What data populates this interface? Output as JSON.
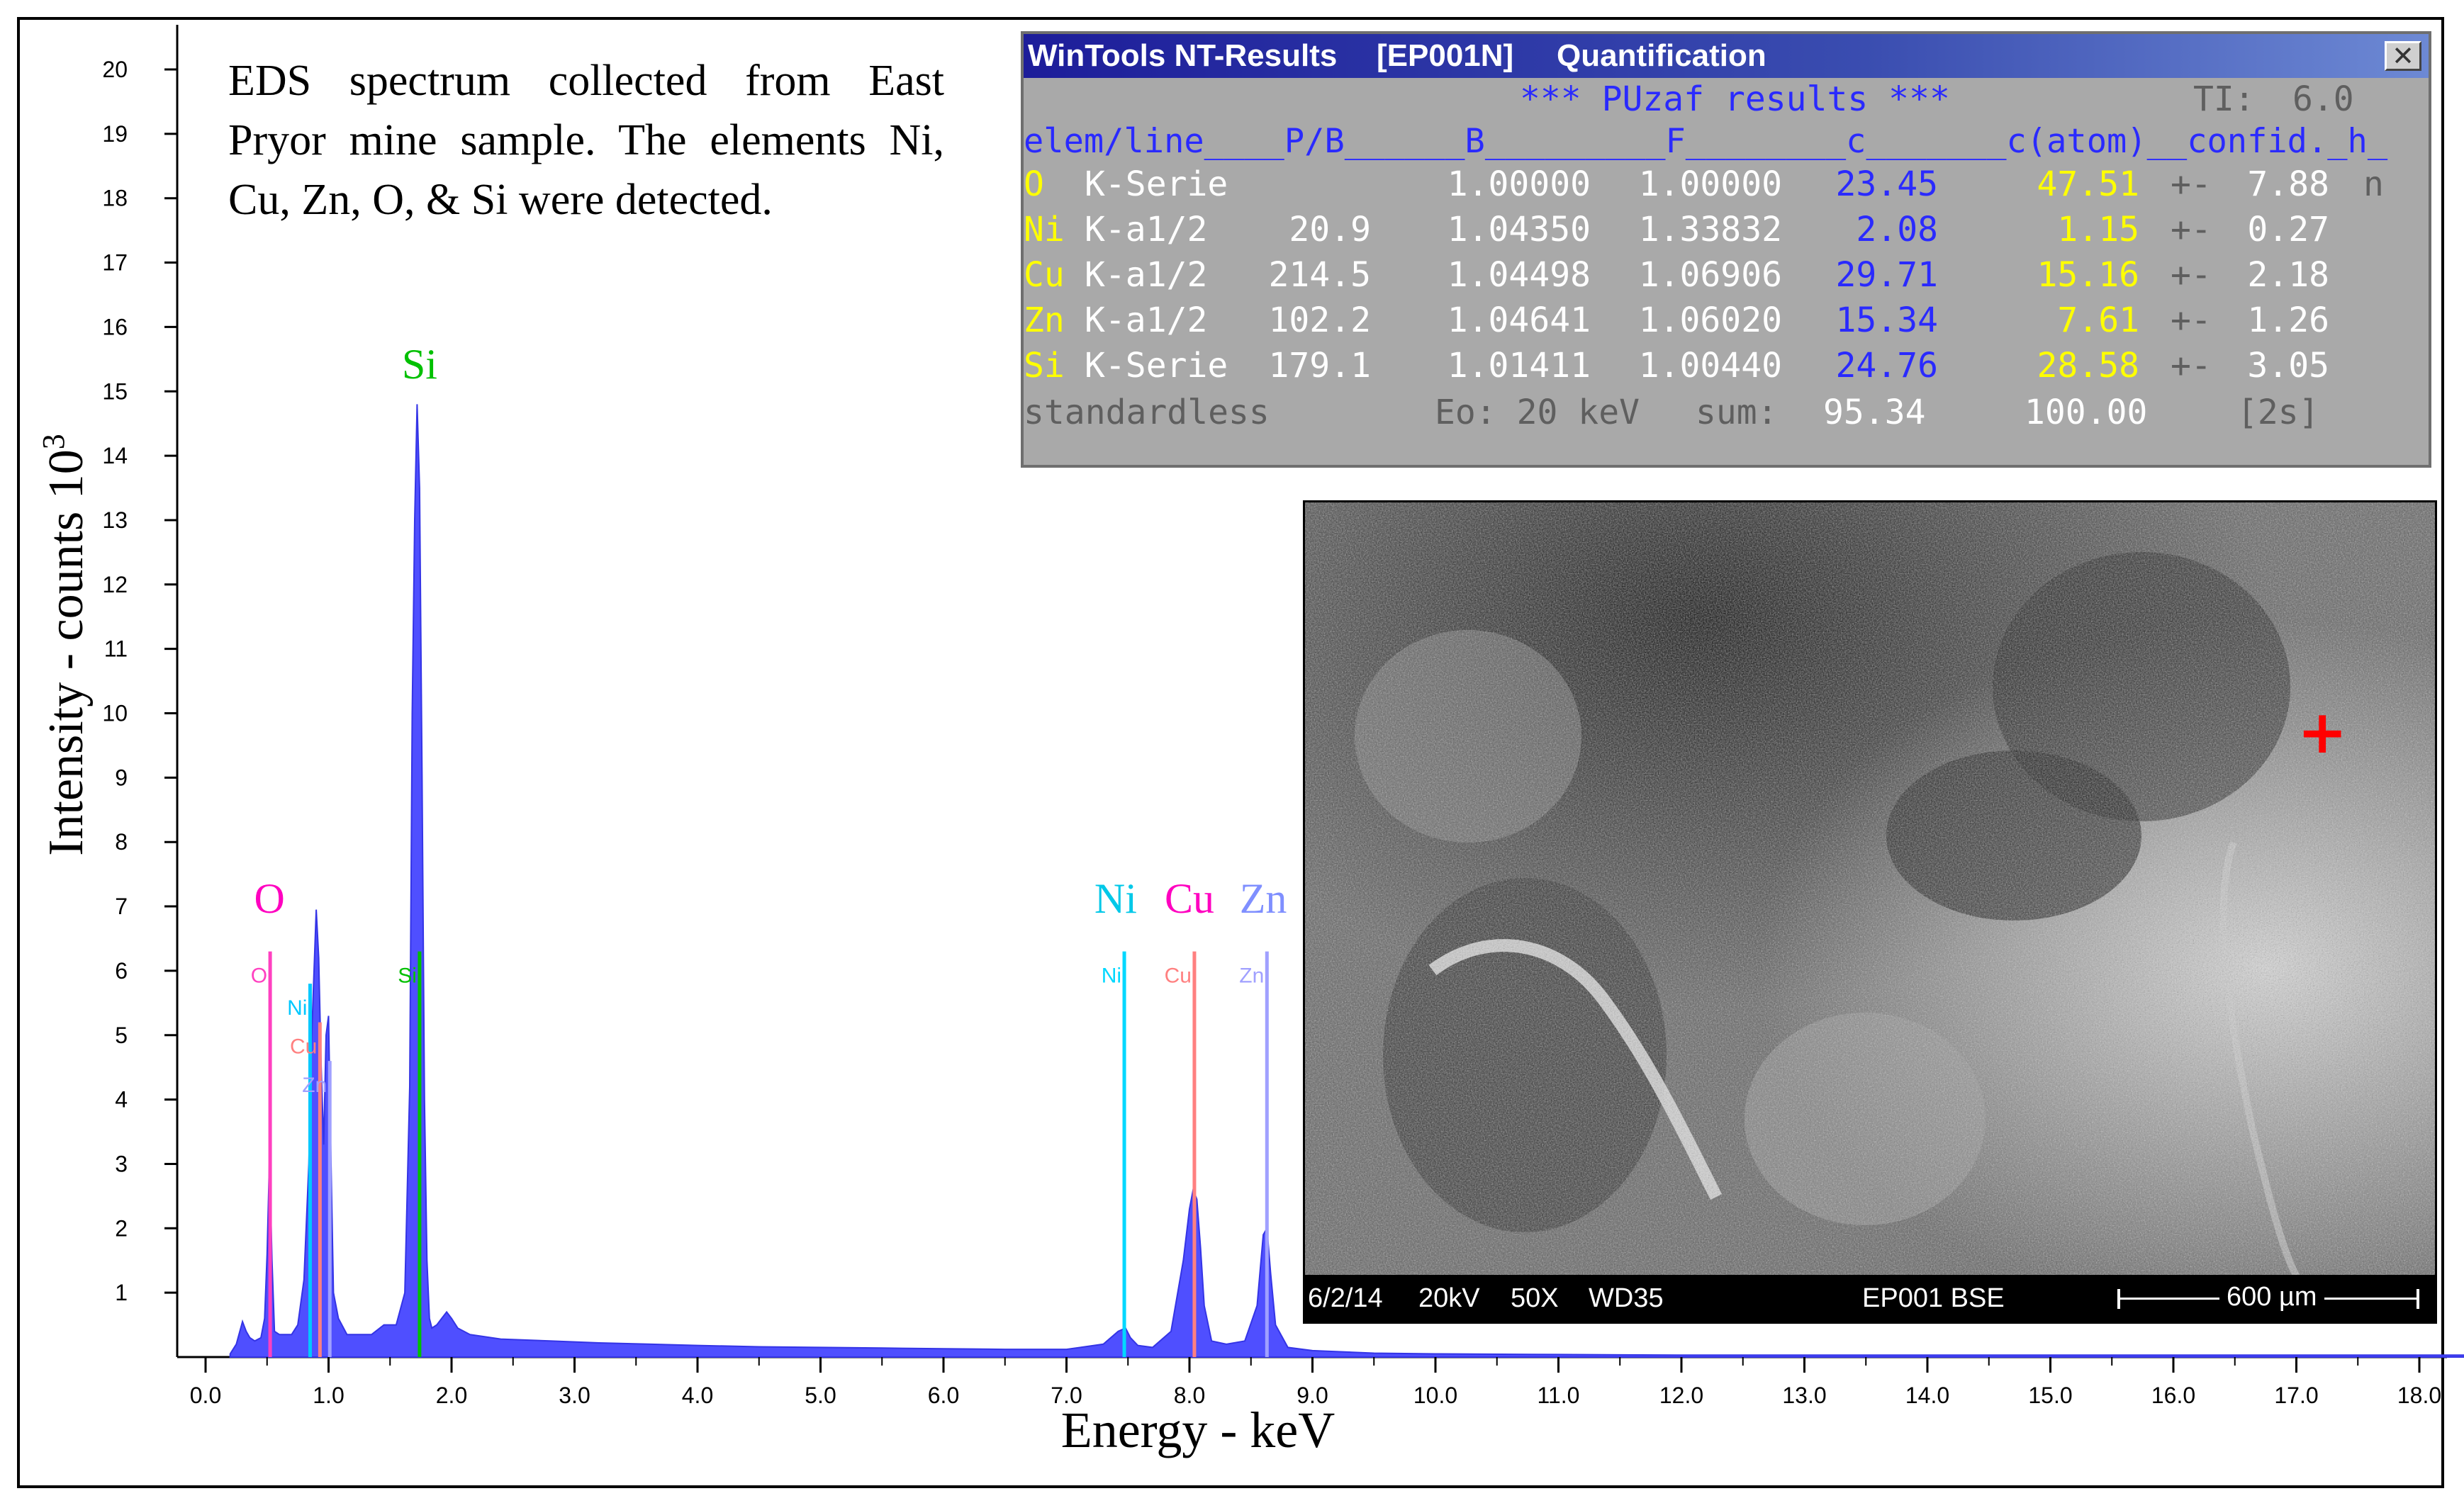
{
  "caption": "EDS spectrum collected from East Pryor mine sample. The elements Ni, Cu, Zn, O, & Si were detected.",
  "chart_data": {
    "type": "area",
    "title": "",
    "xlabel": "Energy - keV",
    "ylabel": "Intensity - counts 10",
    "ylabel_sup": "3",
    "xlim": [
      0,
      18.5
    ],
    "ylim": [
      0,
      20.5
    ],
    "x_ticks": [
      "0.0",
      "1.0",
      "2.0",
      "3.0",
      "4.0",
      "5.0",
      "6.0",
      "7.0",
      "8.0",
      "9.0",
      "10.0",
      "11.0",
      "12.0",
      "13.0",
      "14.0",
      "15.0",
      "16.0",
      "17.0",
      "18.0"
    ],
    "y_ticks": [
      "1",
      "2",
      "3",
      "4",
      "5",
      "6",
      "7",
      "8",
      "9",
      "10",
      "11",
      "12",
      "13",
      "14",
      "15",
      "16",
      "17",
      "18",
      "19",
      "20"
    ],
    "spectrum": {
      "x": [
        0.2,
        0.25,
        0.3,
        0.33,
        0.36,
        0.4,
        0.45,
        0.48,
        0.5,
        0.52,
        0.54,
        0.56,
        0.6,
        0.65,
        0.7,
        0.75,
        0.8,
        0.84,
        0.86,
        0.88,
        0.9,
        0.92,
        0.94,
        0.96,
        0.98,
        1.0,
        1.02,
        1.04,
        1.08,
        1.15,
        1.25,
        1.35,
        1.45,
        1.55,
        1.62,
        1.66,
        1.68,
        1.7,
        1.72,
        1.74,
        1.76,
        1.78,
        1.8,
        1.82,
        1.84,
        1.88,
        1.92,
        1.96,
        2.0,
        2.05,
        2.15,
        2.4,
        2.8,
        3.2,
        3.6,
        4.0,
        4.5,
        5.0,
        5.5,
        6.0,
        6.5,
        7.0,
        7.3,
        7.42,
        7.48,
        7.52,
        7.58,
        7.7,
        7.85,
        7.95,
        8.0,
        8.03,
        8.06,
        8.09,
        8.12,
        8.18,
        8.3,
        8.45,
        8.55,
        8.6,
        8.63,
        8.66,
        8.7,
        8.8,
        9.0,
        9.5,
        10.0,
        11.0,
        12.0,
        13.0,
        14.0,
        15.0,
        16.0,
        17.0,
        18.0,
        18.5
      ],
      "y": [
        0.05,
        0.2,
        0.55,
        0.4,
        0.3,
        0.25,
        0.3,
        0.6,
        1.6,
        3.1,
        1.5,
        0.4,
        0.35,
        0.35,
        0.35,
        0.5,
        1.2,
        3.0,
        4.8,
        5.9,
        6.95,
        6.2,
        4.5,
        3.3,
        5.0,
        5.3,
        3.0,
        1.0,
        0.6,
        0.35,
        0.35,
        0.35,
        0.5,
        0.5,
        1.0,
        4.2,
        10.0,
        13.0,
        14.8,
        13.5,
        9.0,
        4.0,
        1.5,
        0.6,
        0.45,
        0.5,
        0.6,
        0.7,
        0.6,
        0.45,
        0.35,
        0.28,
        0.25,
        0.22,
        0.2,
        0.18,
        0.16,
        0.15,
        0.14,
        0.13,
        0.12,
        0.12,
        0.2,
        0.4,
        0.45,
        0.3,
        0.18,
        0.15,
        0.4,
        1.5,
        2.3,
        2.6,
        2.45,
        1.7,
        0.8,
        0.25,
        0.2,
        0.25,
        0.8,
        1.9,
        2.0,
        1.3,
        0.5,
        0.15,
        0.1,
        0.06,
        0.05,
        0.04,
        0.03,
        0.03,
        0.03,
        0.03,
        0.03,
        0.03,
        0.03,
        0.03
      ]
    },
    "markers": [
      {
        "label": "O",
        "energy": 0.525,
        "height": 6.3,
        "color": "#ff40c0"
      },
      {
        "label": "Ni",
        "energy": 0.85,
        "height": 5.8,
        "color": "#00c8ff"
      },
      {
        "label": "Cu",
        "energy": 0.93,
        "height": 5.2,
        "color": "#ff8080"
      },
      {
        "label": "Zn",
        "energy": 1.01,
        "height": 4.6,
        "color": "#a0a0ff"
      },
      {
        "label": "Si",
        "energy": 1.74,
        "height": 6.3,
        "color": "#00c000"
      },
      {
        "label": "Ni",
        "energy": 7.47,
        "height": 6.3,
        "color": "#00d8ff"
      },
      {
        "label": "Cu",
        "energy": 8.04,
        "height": 6.3,
        "color": "#ff8080"
      },
      {
        "label": "Zn",
        "energy": 8.63,
        "height": 6.3,
        "color": "#a0a0ff"
      }
    ],
    "annotations": [
      {
        "text": "O",
        "energy": 0.52,
        "level": 6.9,
        "color": "#ff00c0"
      },
      {
        "text": "Si",
        "energy": 1.74,
        "level": 15.2,
        "color": "#00c000"
      },
      {
        "text": "Ni",
        "energy": 7.4,
        "level": 6.9,
        "color": "#00c8e8"
      },
      {
        "text": "Cu",
        "energy": 8.0,
        "level": 6.9,
        "color": "#ff00c0"
      },
      {
        "text": "Zn",
        "energy": 8.6,
        "level": 6.9,
        "color": "#7f8fff"
      }
    ]
  },
  "results_window": {
    "title_app": "WinTools NT-Results",
    "title_id": "[EP001N]",
    "title_mode": "Quantification",
    "close_label": "✕",
    "banner": "*** PUzaf results ***",
    "ti_label": "TI:",
    "ti_value": "6.0",
    "header": "elem/line____P/B______B_________F________c_______c(atom)__confid._h_",
    "rows": [
      {
        "el": "O ",
        "line": "K-Serie",
        "pb": "",
        "b": "1.00000",
        "f": "1.00000",
        "c": "23.45",
        "catom": "47.51",
        "pm": "+-",
        "conf": "7.88",
        "h": "n"
      },
      {
        "el": "Ni",
        "line": "K-a1/2",
        "pb": "20.9",
        "b": "1.04350",
        "f": "1.33832",
        "c": "2.08",
        "catom": "1.15",
        "pm": "+-",
        "conf": "0.27",
        "h": ""
      },
      {
        "el": "Cu",
        "line": "K-a1/2",
        "pb": "214.5",
        "b": "1.04498",
        "f": "1.06906",
        "c": "29.71",
        "catom": "15.16",
        "pm": "+-",
        "conf": "2.18",
        "h": ""
      },
      {
        "el": "Zn",
        "line": "K-a1/2",
        "pb": "102.2",
        "b": "1.04641",
        "f": "1.06020",
        "c": "15.34",
        "catom": "7.61",
        "pm": "+-",
        "conf": "1.26",
        "h": ""
      },
      {
        "el": "Si",
        "line": "K-Serie",
        "pb": "179.1",
        "b": "1.01411",
        "f": "1.00440",
        "c": "24.76",
        "catom": "28.58",
        "pm": "+-",
        "conf": "3.05",
        "h": ""
      }
    ],
    "footer": {
      "mode": "standardless",
      "eo": "Eo: 20 keV",
      "sum_label": "sum:",
      "sum_c": "95.34",
      "sum_atom": "100.00",
      "sigma": "[2s]"
    }
  },
  "sem": {
    "date": "6/2/14",
    "kv": "20kV",
    "mag": "50X",
    "wd": "WD35",
    "sample": "EP001 BSE",
    "scale": "600 µm",
    "cursor": "+"
  }
}
